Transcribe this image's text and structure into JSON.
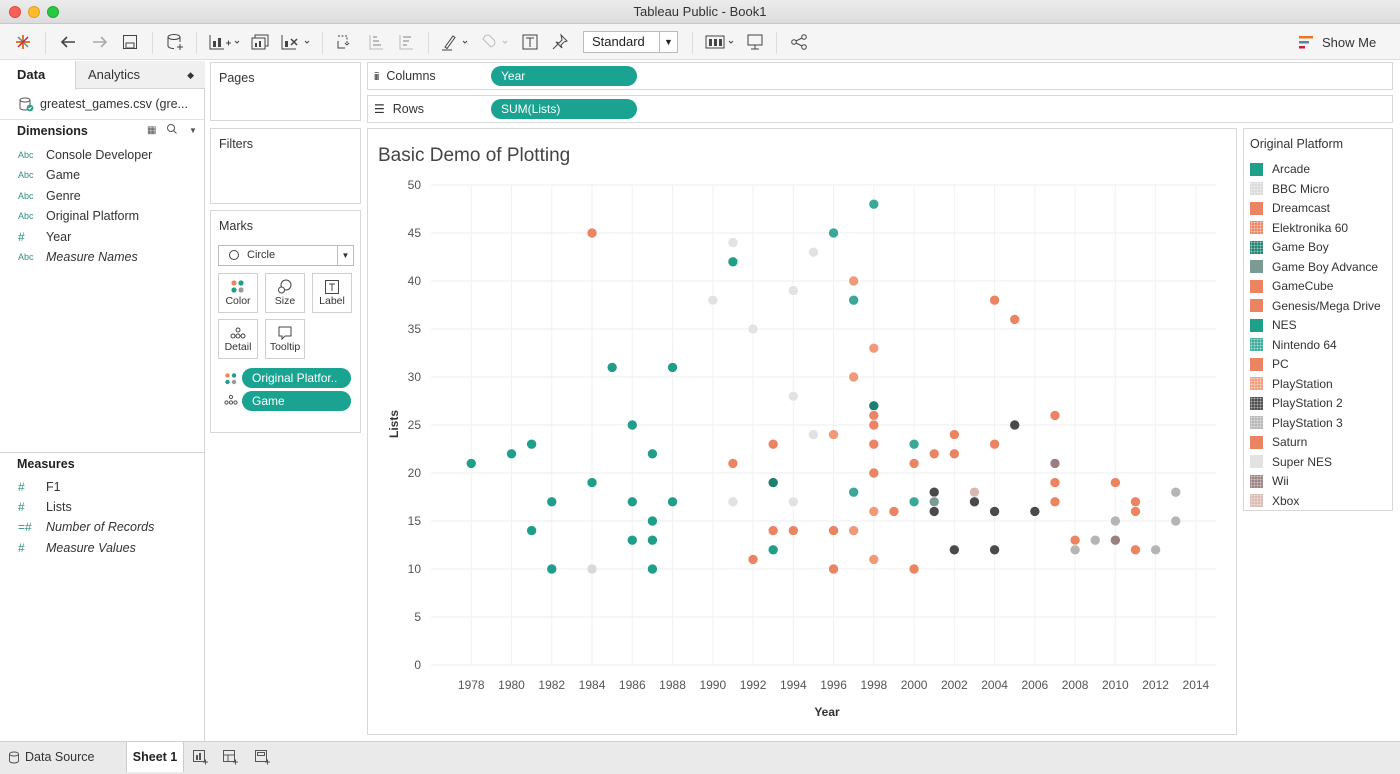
{
  "window": {
    "title": "Tableau Public - Book1"
  },
  "toolbar": {
    "mark_size_select": "Standard",
    "show_me": "Show Me"
  },
  "data_pane": {
    "tabs": {
      "data": "Data",
      "analytics": "Analytics"
    },
    "datasource": "greatest_games.csv (gre...",
    "dimensions_header": "Dimensions",
    "dimensions": [
      {
        "type": "Abc",
        "name": "Console Developer"
      },
      {
        "type": "Abc",
        "name": "Game"
      },
      {
        "type": "Abc",
        "name": "Genre"
      },
      {
        "type": "Abc",
        "name": "Original Platform"
      },
      {
        "type": "#",
        "name": "Year"
      },
      {
        "type": "Abc",
        "name": "Measure Names"
      }
    ],
    "measures_header": "Measures",
    "measures": [
      {
        "type": "#",
        "name": "F1"
      },
      {
        "type": "#",
        "name": "Lists"
      },
      {
        "type": "=#",
        "name": "Number of Records"
      },
      {
        "type": "#",
        "name": "Measure Values"
      }
    ]
  },
  "cards": {
    "pages": "Pages",
    "filters": "Filters",
    "marks": "Marks",
    "mark_type": "Circle",
    "buttons": {
      "color": "Color",
      "size": "Size",
      "label": "Label",
      "detail": "Detail",
      "tooltip": "Tooltip"
    },
    "pills": {
      "color": "Original Platfor..",
      "detail": "Game"
    }
  },
  "shelves": {
    "columns_label": "Columns",
    "columns_pill": "Year",
    "rows_label": "Rows",
    "rows_pill": "SUM(Lists)"
  },
  "legend": {
    "title": "Original Platform",
    "items": [
      {
        "name": "Arcade",
        "color": "#1f9e89",
        "pattern": "solid"
      },
      {
        "name": "BBC Micro",
        "color": "#d9d9d9",
        "pattern": "dots"
      },
      {
        "name": "Dreamcast",
        "color": "#ea8462",
        "pattern": "solid"
      },
      {
        "name": "Elektronika 60",
        "color": "#ea8462",
        "pattern": "dots"
      },
      {
        "name": "Game Boy",
        "color": "#1f7f6e",
        "pattern": "dots"
      },
      {
        "name": "Game Boy Advance",
        "color": "#7a9a94",
        "pattern": "solid"
      },
      {
        "name": "GameCube",
        "color": "#ea8462",
        "pattern": "solid"
      },
      {
        "name": "Genesis/Mega Drive",
        "color": "#ea8462",
        "pattern": "solid"
      },
      {
        "name": "NES",
        "color": "#1f9e89",
        "pattern": "solid"
      },
      {
        "name": "Nintendo 64",
        "color": "#3aa898",
        "pattern": "dots"
      },
      {
        "name": "PC",
        "color": "#ea8462",
        "pattern": "solid"
      },
      {
        "name": "PlayStation",
        "color": "#f09a7a",
        "pattern": "dots"
      },
      {
        "name": "PlayStation 2",
        "color": "#4a4a4a",
        "pattern": "dots"
      },
      {
        "name": "PlayStation 3",
        "color": "#b5b5b5",
        "pattern": "dots"
      },
      {
        "name": "Saturn",
        "color": "#ea8462",
        "pattern": "solid"
      },
      {
        "name": "Super NES",
        "color": "#e2e2e2",
        "pattern": "solid"
      },
      {
        "name": "Wii",
        "color": "#9a7f7f",
        "pattern": "dots"
      },
      {
        "name": "Xbox",
        "color": "#d8b8b0",
        "pattern": "dots"
      }
    ]
  },
  "bottom": {
    "data_source_tab": "Data Source",
    "sheet_tab": "Sheet 1"
  },
  "chart_data": {
    "type": "scatter",
    "title": "Basic Demo of Plotting",
    "xlabel": "Year",
    "ylabel": "Lists",
    "xlim": [
      1976,
      2015
    ],
    "ylim": [
      0,
      50
    ],
    "x_ticks": [
      1978,
      1980,
      1982,
      1984,
      1986,
      1988,
      1990,
      1992,
      1994,
      1996,
      1998,
      2000,
      2002,
      2004,
      2006,
      2008,
      2010,
      2012,
      2014
    ],
    "y_ticks": [
      0,
      5,
      10,
      15,
      20,
      25,
      30,
      35,
      40,
      45,
      50
    ],
    "grid": true,
    "legend_position": "right",
    "points": [
      {
        "x": 1978,
        "y": 21,
        "c": "#1f9e89"
      },
      {
        "x": 1980,
        "y": 22,
        "c": "#1f9e89"
      },
      {
        "x": 1981,
        "y": 23,
        "c": "#1f9e89"
      },
      {
        "x": 1981,
        "y": 14,
        "c": "#1f9e89"
      },
      {
        "x": 1982,
        "y": 17,
        "c": "#1f9e89"
      },
      {
        "x": 1982,
        "y": 10,
        "c": "#1f9e89"
      },
      {
        "x": 1984,
        "y": 45,
        "c": "#ea8462"
      },
      {
        "x": 1984,
        "y": 19,
        "c": "#1f9e89"
      },
      {
        "x": 1984,
        "y": 10,
        "c": "#d9d9d9"
      },
      {
        "x": 1985,
        "y": 31,
        "c": "#1f9e89"
      },
      {
        "x": 1986,
        "y": 25,
        "c": "#1f9e89"
      },
      {
        "x": 1986,
        "y": 17,
        "c": "#1f9e89"
      },
      {
        "x": 1986,
        "y": 13,
        "c": "#1f9e89"
      },
      {
        "x": 1987,
        "y": 22,
        "c": "#1f9e89"
      },
      {
        "x": 1987,
        "y": 15,
        "c": "#1f9e89"
      },
      {
        "x": 1987,
        "y": 13,
        "c": "#1f9e89"
      },
      {
        "x": 1987,
        "y": 10,
        "c": "#1f9e89"
      },
      {
        "x": 1988,
        "y": 31,
        "c": "#1f9e89"
      },
      {
        "x": 1988,
        "y": 17,
        "c": "#1f9e89"
      },
      {
        "x": 1990,
        "y": 38,
        "c": "#e2e2e2"
      },
      {
        "x": 1991,
        "y": 44,
        "c": "#e2e2e2"
      },
      {
        "x": 1991,
        "y": 42,
        "c": "#1f9e89"
      },
      {
        "x": 1991,
        "y": 21,
        "c": "#ea8462"
      },
      {
        "x": 1991,
        "y": 17,
        "c": "#e2e2e2"
      },
      {
        "x": 1992,
        "y": 35,
        "c": "#e2e2e2"
      },
      {
        "x": 1992,
        "y": 11,
        "c": "#ea8462"
      },
      {
        "x": 1993,
        "y": 23,
        "c": "#ea8462"
      },
      {
        "x": 1993,
        "y": 19,
        "c": "#1f7f6e"
      },
      {
        "x": 1993,
        "y": 14,
        "c": "#ea8462"
      },
      {
        "x": 1993,
        "y": 12,
        "c": "#1f9e89"
      },
      {
        "x": 1994,
        "y": 39,
        "c": "#e2e2e2"
      },
      {
        "x": 1994,
        "y": 28,
        "c": "#e2e2e2"
      },
      {
        "x": 1994,
        "y": 17,
        "c": "#e2e2e2"
      },
      {
        "x": 1994,
        "y": 14,
        "c": "#ea8462"
      },
      {
        "x": 1995,
        "y": 43,
        "c": "#e2e2e2"
      },
      {
        "x": 1995,
        "y": 24,
        "c": "#e2e2e2"
      },
      {
        "x": 1996,
        "y": 45,
        "c": "#3aa898"
      },
      {
        "x": 1996,
        "y": 24,
        "c": "#f09a7a"
      },
      {
        "x": 1996,
        "y": 14,
        "c": "#ea8462"
      },
      {
        "x": 1996,
        "y": 10,
        "c": "#ea8462"
      },
      {
        "x": 1997,
        "y": 40,
        "c": "#f09a7a"
      },
      {
        "x": 1997,
        "y": 38,
        "c": "#3aa898"
      },
      {
        "x": 1997,
        "y": 30,
        "c": "#f09a7a"
      },
      {
        "x": 1997,
        "y": 18,
        "c": "#3aa898"
      },
      {
        "x": 1997,
        "y": 14,
        "c": "#f09a7a"
      },
      {
        "x": 1998,
        "y": 48,
        "c": "#3aa898"
      },
      {
        "x": 1998,
        "y": 33,
        "c": "#f09a7a"
      },
      {
        "x": 1998,
        "y": 27,
        "c": "#1f7f6e"
      },
      {
        "x": 1998,
        "y": 26,
        "c": "#ea8462"
      },
      {
        "x": 1998,
        "y": 25,
        "c": "#ea8462"
      },
      {
        "x": 1998,
        "y": 23,
        "c": "#ea8462"
      },
      {
        "x": 1998,
        "y": 20,
        "c": "#ea8462"
      },
      {
        "x": 1998,
        "y": 16,
        "c": "#f09a7a"
      },
      {
        "x": 1998,
        "y": 11,
        "c": "#f09a7a"
      },
      {
        "x": 1999,
        "y": 16,
        "c": "#ea8462"
      },
      {
        "x": 2000,
        "y": 23,
        "c": "#3aa898"
      },
      {
        "x": 2000,
        "y": 21,
        "c": "#ea8462"
      },
      {
        "x": 2000,
        "y": 17,
        "c": "#3aa898"
      },
      {
        "x": 2000,
        "y": 10,
        "c": "#ea8462"
      },
      {
        "x": 2001,
        "y": 22,
        "c": "#ea8462"
      },
      {
        "x": 2001,
        "y": 18,
        "c": "#4a4a4a"
      },
      {
        "x": 2001,
        "y": 17,
        "c": "#7a9a94"
      },
      {
        "x": 2001,
        "y": 16,
        "c": "#4a4a4a"
      },
      {
        "x": 2002,
        "y": 24,
        "c": "#ea8462"
      },
      {
        "x": 2002,
        "y": 22,
        "c": "#ea8462"
      },
      {
        "x": 2002,
        "y": 12,
        "c": "#4a4a4a"
      },
      {
        "x": 2003,
        "y": 18,
        "c": "#d8b8b0"
      },
      {
        "x": 2003,
        "y": 17,
        "c": "#4a4a4a"
      },
      {
        "x": 2004,
        "y": 38,
        "c": "#ea8462"
      },
      {
        "x": 2004,
        "y": 23,
        "c": "#ea8462"
      },
      {
        "x": 2004,
        "y": 16,
        "c": "#4a4a4a"
      },
      {
        "x": 2004,
        "y": 12,
        "c": "#4a4a4a"
      },
      {
        "x": 2005,
        "y": 36,
        "c": "#ea8462"
      },
      {
        "x": 2005,
        "y": 25,
        "c": "#4a4a4a"
      },
      {
        "x": 2006,
        "y": 16,
        "c": "#4a4a4a"
      },
      {
        "x": 2007,
        "y": 26,
        "c": "#ea8462"
      },
      {
        "x": 2007,
        "y": 21,
        "c": "#9a7f7f"
      },
      {
        "x": 2007,
        "y": 19,
        "c": "#ea8462"
      },
      {
        "x": 2007,
        "y": 17,
        "c": "#ea8462"
      },
      {
        "x": 2008,
        "y": 13,
        "c": "#ea8462"
      },
      {
        "x": 2008,
        "y": 12,
        "c": "#b5b5b5"
      },
      {
        "x": 2009,
        "y": 13,
        "c": "#b5b5b5"
      },
      {
        "x": 2010,
        "y": 19,
        "c": "#ea8462"
      },
      {
        "x": 2010,
        "y": 15,
        "c": "#b5b5b5"
      },
      {
        "x": 2010,
        "y": 13,
        "c": "#9a7f7f"
      },
      {
        "x": 2011,
        "y": 17,
        "c": "#ea8462"
      },
      {
        "x": 2011,
        "y": 16,
        "c": "#ea8462"
      },
      {
        "x": 2011,
        "y": 12,
        "c": "#ea8462"
      },
      {
        "x": 2012,
        "y": 12,
        "c": "#b5b5b5"
      },
      {
        "x": 2013,
        "y": 18,
        "c": "#b5b5b5"
      },
      {
        "x": 2013,
        "y": 15,
        "c": "#b5b5b5"
      }
    ]
  }
}
